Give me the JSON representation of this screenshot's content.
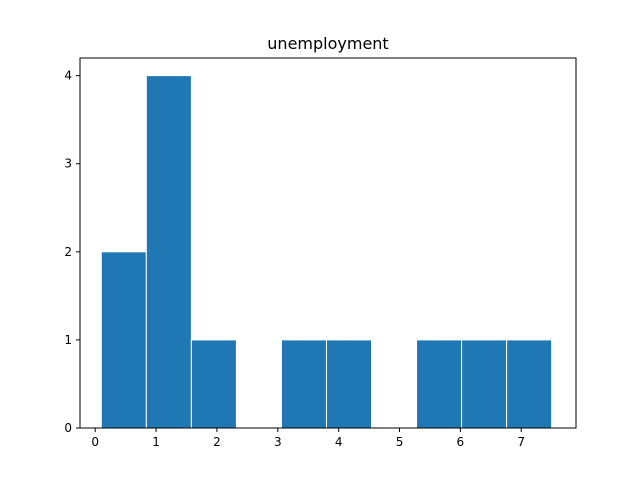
{
  "chart_data": {
    "type": "bar",
    "title": "unemployment",
    "xlabel": "",
    "ylabel": "",
    "xlim": [
      -0.25,
      7.9
    ],
    "ylim": [
      0,
      4.2
    ],
    "xticks": [
      "0",
      "1",
      "2",
      "3",
      "4",
      "5",
      "6",
      "7"
    ],
    "yticks": [
      "0",
      "1",
      "2",
      "3",
      "4"
    ],
    "bin_edges": [
      0.1,
      0.84,
      1.58,
      2.32,
      3.06,
      3.8,
      4.54,
      5.28,
      6.02,
      6.76,
      7.5
    ],
    "counts": [
      2,
      4,
      1,
      0,
      1,
      1,
      0,
      1,
      1,
      1
    ],
    "grid": false,
    "bar_color": "#1f77b4",
    "edge_color": "#ffffff"
  }
}
